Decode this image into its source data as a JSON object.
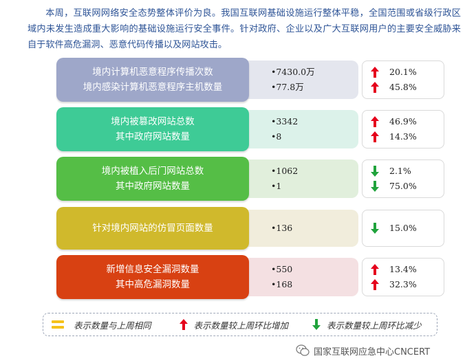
{
  "intro": {
    "text": "本周，互联网网络安全态势整体评价为良。我国互联网基础设施运行整体平稳，全国范围或省级行政区域内未发生造成重大影响的基础设施运行安全事件。针对政府、企业以及广大互联网用户的主要安全威胁来自于软件高危漏洞、恶意代码传播以及网站攻击。"
  },
  "colors": {
    "up": "#e5001c",
    "down": "#20a33c",
    "same": "#f5c21b"
  },
  "rows": [
    {
      "labels": [
        "境内计算机恶意程序传播次数",
        "境内感染计算机恶意程序主机数量"
      ],
      "values": [
        "•7430.0万",
        "•77.8万"
      ],
      "changes": [
        {
          "direction": "up",
          "pct": "20.1%"
        },
        {
          "direction": "up",
          "pct": "45.8%"
        }
      ],
      "color": "#9ea7c9",
      "value_bg": "#e4e6ee"
    },
    {
      "labels": [
        "境内被篡改网站总数",
        "其中政府网站数量"
      ],
      "values": [
        "•3342",
        "•8"
      ],
      "changes": [
        {
          "direction": "up",
          "pct": "46.9%"
        },
        {
          "direction": "up",
          "pct": "14.3%"
        }
      ],
      "color": "#3ecb96",
      "value_bg": "#dcf2ea"
    },
    {
      "labels": [
        "境内被植入后门网站总数",
        "其中政府网站数量"
      ],
      "values": [
        "•1062",
        "•1"
      ],
      "changes": [
        {
          "direction": "down",
          "pct": "2.1%"
        },
        {
          "direction": "down",
          "pct": "75.0%"
        }
      ],
      "color": "#55be46",
      "value_bg": "#e1efdc"
    },
    {
      "labels": [
        "针对境内网站的仿冒页面数量"
      ],
      "values": [
        "•136"
      ],
      "changes": [
        {
          "direction": "down",
          "pct": "15.0%"
        }
      ],
      "color": "#d0b92c",
      "value_bg": "#f1eddc"
    },
    {
      "labels": [
        "新增信息安全漏洞数量",
        "其中高危漏洞数量"
      ],
      "values": [
        "•550",
        "•168"
      ],
      "changes": [
        {
          "direction": "up",
          "pct": "13.4%"
        },
        {
          "direction": "up",
          "pct": "32.3%"
        }
      ],
      "color": "#d84112",
      "value_bg": "#f4e0e2"
    }
  ],
  "legend": {
    "same": {
      "icon": "equal-bars-icon",
      "label": "表示数量与上周相同"
    },
    "up": {
      "icon": "up-arrow-icon",
      "label": "表示数量较上周环比增加"
    },
    "down": {
      "icon": "down-arrow-icon",
      "label": "表示数量较上周环比减少"
    }
  },
  "watermark": {
    "icon": "wechat-icon",
    "text": "国家互联网应急中心CNCERT"
  }
}
